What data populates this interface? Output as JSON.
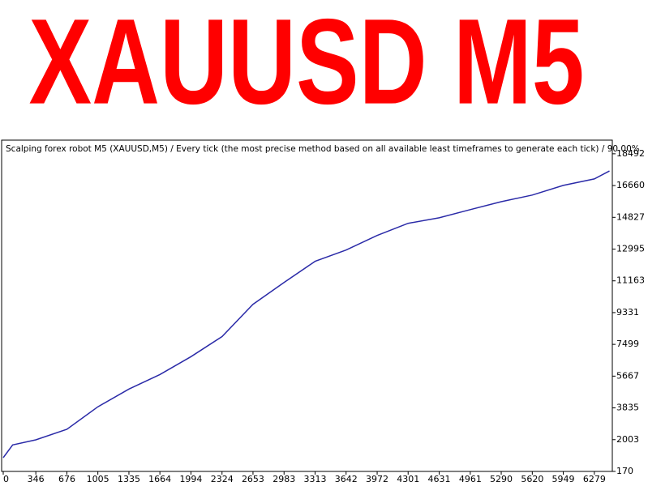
{
  "chart_data": {
    "type": "line",
    "title": "XAUUSD M5",
    "subtitle": "Scalping forex robot M5 (XAUUSD,M5) / Every tick (the most precise method based on all available least timeframes to generate each tick) / 90.00%",
    "x": [
      0,
      100,
      346,
      676,
      1005,
      1335,
      1664,
      1994,
      2324,
      2653,
      2983,
      3313,
      3642,
      3972,
      4301,
      4631,
      4961,
      5290,
      5620,
      5949,
      6279,
      6440
    ],
    "values": [
      962,
      1700,
      1990,
      2600,
      3900,
      4920,
      5760,
      6790,
      7950,
      9810,
      11070,
      12290,
      12940,
      13780,
      14480,
      14800,
      15270,
      15730,
      16110,
      16670,
      17040,
      17500
    ],
    "color": "#2b2ba8",
    "xlim": [
      0,
      6470
    ],
    "ylim": [
      170,
      19280
    ],
    "xticks": [
      0,
      346,
      676,
      1005,
      1335,
      1664,
      1994,
      2324,
      2653,
      2983,
      3313,
      3642,
      3972,
      4301,
      4631,
      4961,
      5290,
      5620,
      5949,
      6279
    ],
    "yticks": [
      170,
      2003,
      3835,
      5667,
      7499,
      9331,
      11163,
      12995,
      14827,
      16660,
      18492
    ],
    "title_color": "#ff0000"
  }
}
